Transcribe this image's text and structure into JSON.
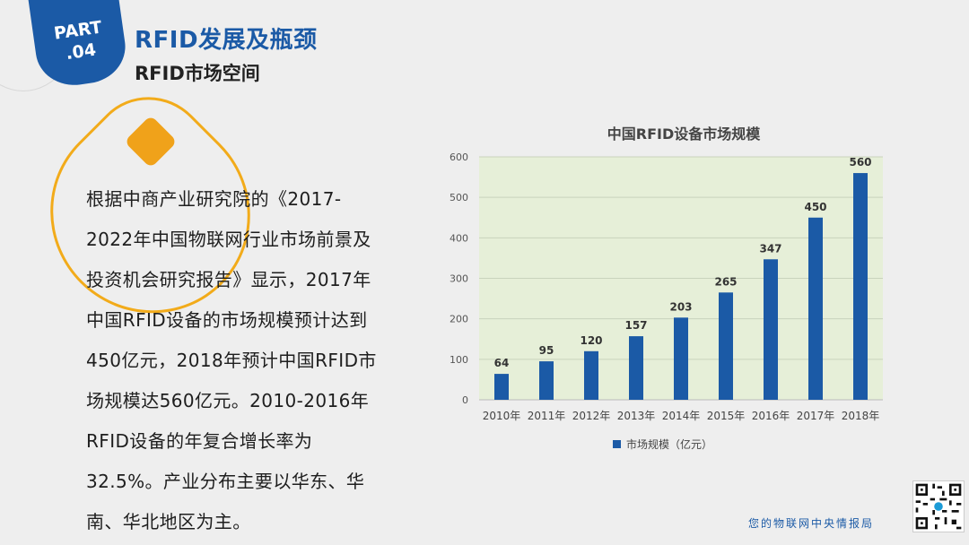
{
  "header": {
    "part_line1": "PART",
    "part_line2": ".04",
    "title": "RFID发展及瓶颈",
    "subtitle": "RFID市场空间"
  },
  "body": {
    "paragraph": "根据中商产业研究院的《2017-2022年中国物联网行业市场前景及投资机会研究报告》显示，2017年中国RFID设备的市场规模预计达到450亿元，2018年预计中国RFID市场规模达560亿元。2010-2016年RFID设备的年复合增长率为32.5%。产业分布主要以华东、华南、华北地区为主。"
  },
  "chart_data": {
    "type": "bar",
    "title": "中国RFID设备市场规模",
    "categories": [
      "2010年",
      "2011年",
      "2012年",
      "2013年",
      "2014年",
      "2015年",
      "2016年",
      "2017年",
      "2018年"
    ],
    "series": [
      {
        "name": "市场规模（亿元）",
        "values": [
          64,
          95,
          120,
          157,
          203,
          265,
          347,
          450,
          560
        ]
      }
    ],
    "ylim": [
      0,
      600
    ],
    "yticks": [
      0,
      100,
      200,
      300,
      400,
      500,
      600
    ],
    "grid": true,
    "legend": "bottom",
    "bar_color": "#1b5aa6",
    "plot_bg": "#e6efd8"
  },
  "footer": {
    "text": "您的物联网中央情报局"
  },
  "colors": {
    "brand_blue": "#1b5aa6",
    "accent_orange": "#f2ab1a"
  }
}
